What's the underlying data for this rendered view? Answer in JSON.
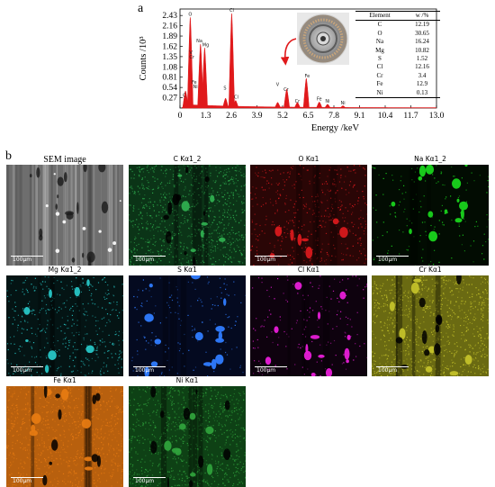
{
  "panel_a": {
    "letter": "a"
  },
  "panel_b": {
    "letter": "b"
  },
  "chart_data": {
    "type": "bar",
    "xlabel": "Energy /keV",
    "ylabel": "Counts /10³",
    "x_ticks": [
      "0",
      "1.3",
      "2.6",
      "3.9",
      "5.2",
      "6.5",
      "7.8",
      "9.1",
      "10.4",
      "11.7",
      "13.0"
    ],
    "y_ticks": [
      "0.27",
      "0.54",
      "0.81",
      "1.08",
      "1.35",
      "1.62",
      "1.89",
      "2.16",
      "2.43"
    ],
    "xlim": [
      0,
      13.0
    ],
    "ylim": [
      0,
      2.6
    ],
    "peaks": [
      {
        "label": "C",
        "x": 0.28,
        "y": 0.45
      },
      {
        "label": "O",
        "x": 0.52,
        "y": 2.38
      },
      {
        "label": "Na",
        "x": 1.04,
        "y": 1.68
      },
      {
        "label": "Mg",
        "x": 1.25,
        "y": 1.58
      },
      {
        "label": "S",
        "x": 2.31,
        "y": 0.26
      },
      {
        "label": "Cl",
        "x": 2.62,
        "y": 2.48
      },
      {
        "label": "Cl",
        "x": 2.82,
        "y": 0.2
      },
      {
        "label": "V",
        "x": 4.95,
        "y": 0.15
      },
      {
        "label": "Cr",
        "x": 5.41,
        "y": 0.5
      },
      {
        "label": "Cr",
        "x": 5.95,
        "y": 0.15
      },
      {
        "label": "Fe",
        "x": 6.4,
        "y": 0.78
      },
      {
        "label": "Fe",
        "x": 7.06,
        "y": 0.16
      },
      {
        "label": "Ni",
        "x": 7.48,
        "y": 0.1
      },
      {
        "label": "Ni",
        "x": 8.26,
        "y": 0.06
      }
    ],
    "small_labels": [
      {
        "text": "O",
        "x": 0.52,
        "y": 2.4
      },
      {
        "text": "Na",
        "x": 0.98,
        "y": 1.7
      },
      {
        "text": "Mg",
        "x": 1.3,
        "y": 1.6
      },
      {
        "text": "V",
        "x": 0.55,
        "y": 1.4
      },
      {
        "text": "Cr",
        "x": 0.6,
        "y": 1.28
      },
      {
        "text": "Cl",
        "x": 2.62,
        "y": 2.5
      },
      {
        "text": "Fe",
        "x": 0.72,
        "y": 0.62
      },
      {
        "text": "Ni",
        "x": 0.78,
        "y": 0.5
      },
      {
        "text": "C",
        "x": 0.22,
        "y": 0.27
      },
      {
        "text": "S",
        "x": 2.28,
        "y": 0.46
      },
      {
        "text": "V",
        "x": 4.95,
        "y": 0.56
      },
      {
        "text": "Cr",
        "x": 5.38,
        "y": 0.42
      },
      {
        "text": "Cr",
        "x": 5.95,
        "y": 0.12
      },
      {
        "text": "Fe",
        "x": 6.45,
        "y": 0.78
      },
      {
        "text": "Fe",
        "x": 7.06,
        "y": 0.18
      },
      {
        "text": "Ni",
        "x": 7.48,
        "y": 0.12
      },
      {
        "text": "Ni",
        "x": 8.26,
        "y": 0.07
      },
      {
        "text": "Cl",
        "x": 2.85,
        "y": 0.22
      }
    ],
    "bar_color": "#e0191b"
  },
  "composition_table": {
    "headers": [
      "Element",
      "w /%"
    ],
    "rows": [
      [
        "C",
        "12.19"
      ],
      [
        "O",
        "30.65"
      ],
      [
        "Na",
        "16.24"
      ],
      [
        "Mg",
        "10.82"
      ],
      [
        "S",
        "1.52"
      ],
      [
        "Cl",
        "12.16"
      ],
      [
        "Cr",
        "3.4"
      ],
      [
        "Fe",
        "12.9"
      ],
      [
        "Ni",
        "0.13"
      ]
    ]
  },
  "maps": [
    {
      "title": "SEM image",
      "scale": "100μm",
      "color": "#8a8a8a",
      "bg": "#6e6e6e",
      "style": "sem"
    },
    {
      "title": "C Kα1_2",
      "scale": "100μm",
      "color": "#2fae4f",
      "bg": "#0b3417",
      "style": "dense"
    },
    {
      "title": "O Kα1",
      "scale": "100μm",
      "color": "#d8191c",
      "bg": "#2a0606",
      "style": "medium"
    },
    {
      "title": "Na Kα1_2",
      "scale": "100μm",
      "color": "#19d41c",
      "bg": "#020c02",
      "style": "sparse"
    },
    {
      "title": "Mg Kα1_2",
      "scale": "100μm",
      "color": "#27c6c6",
      "bg": "#041414",
      "style": "medium"
    },
    {
      "title": "S Kα1",
      "scale": "100μm",
      "color": "#2f7cff",
      "bg": "#040a20",
      "style": "sparse"
    },
    {
      "title": "Cl Kα1",
      "scale": "100μm",
      "color": "#e81ed8",
      "bg": "#0e020e",
      "style": "sparse"
    },
    {
      "title": "Cr Kα1",
      "scale": "100μm",
      "color": "#c4c22a",
      "bg": "#6a6a12",
      "style": "dense"
    },
    {
      "title": "Fe Kα1",
      "scale": "100μm",
      "color": "#e67a12",
      "bg": "#b8600e",
      "style": "dense"
    },
    {
      "title": "Ni Kα1",
      "scale": "100μm",
      "color": "#2fa13b",
      "bg": "#0e4115",
      "style": "dense"
    }
  ]
}
